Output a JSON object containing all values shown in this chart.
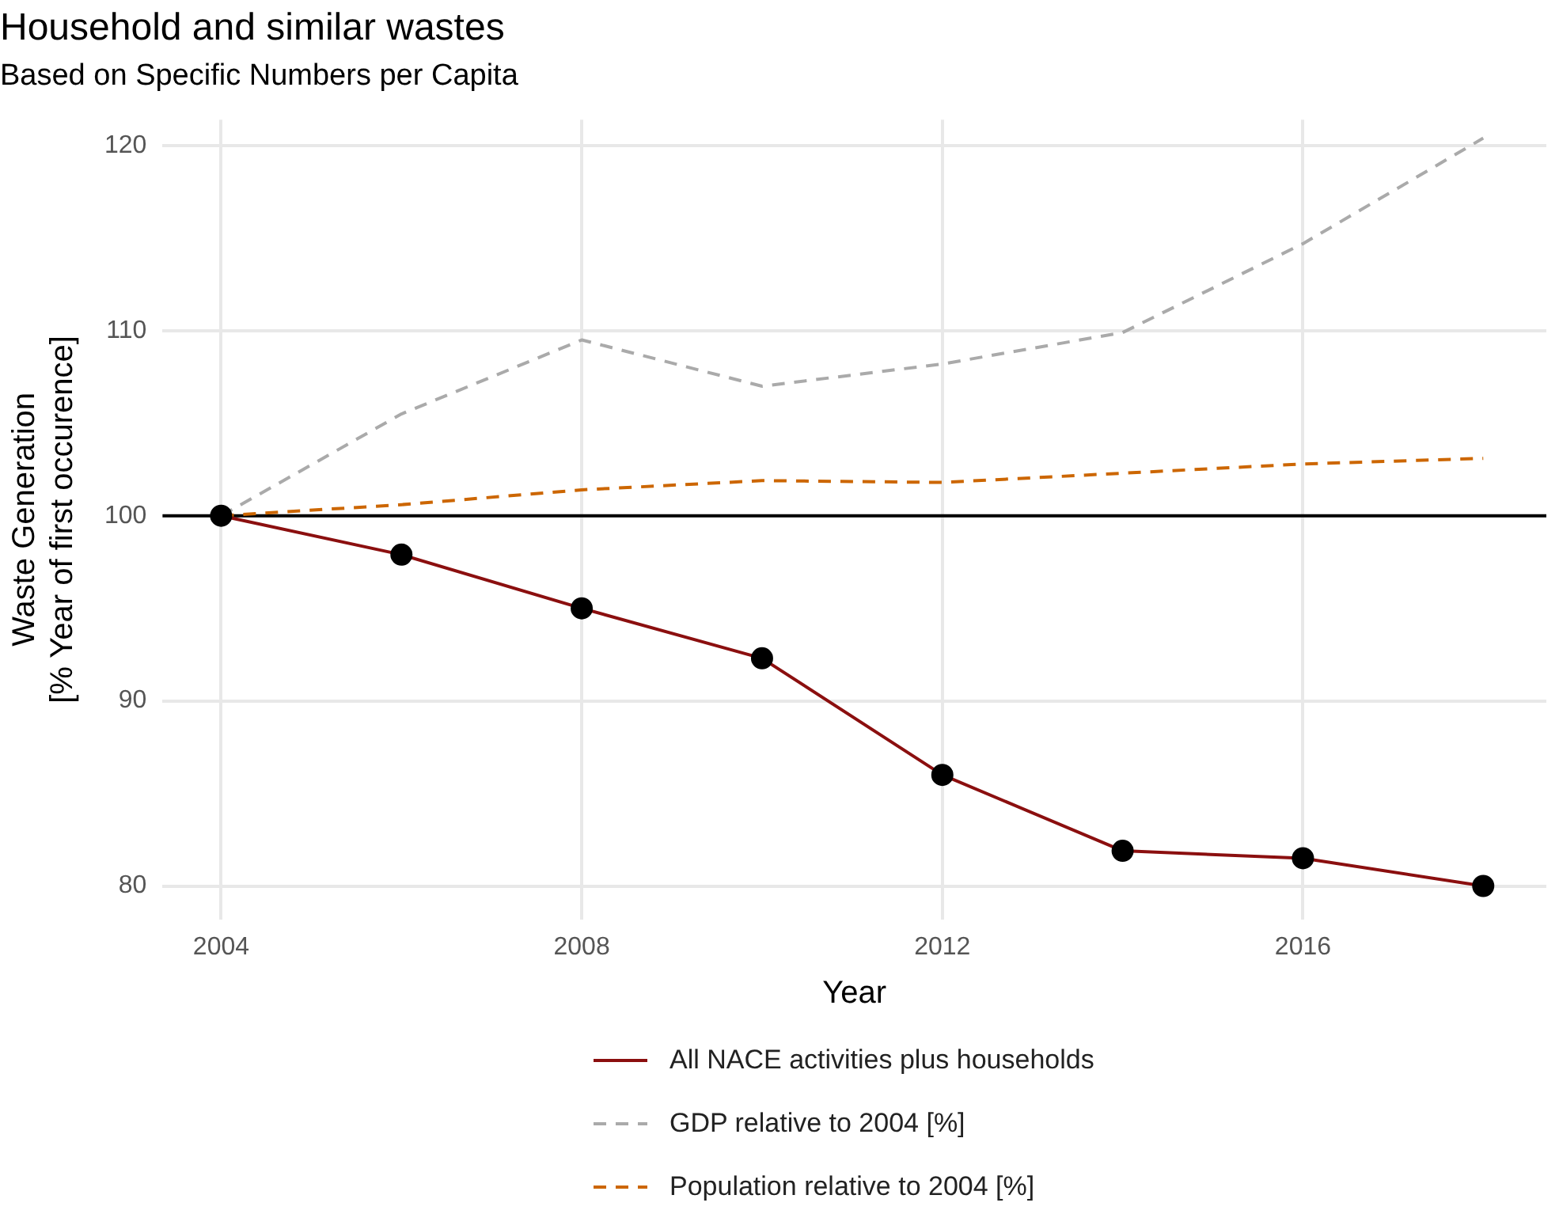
{
  "chart_data": {
    "type": "line",
    "title": "Household and similar wastes",
    "subtitle": "Based on Specific Numbers per Capita",
    "xlabel": "Year",
    "ylabel": "Waste Generation\n[% Year of first occurence]",
    "x": [
      2004,
      2006,
      2008,
      2010,
      2012,
      2014,
      2016,
      2018
    ],
    "series": [
      {
        "name": "All NACE activities plus households",
        "color": "#8b0f0f",
        "values": [
          100,
          97.9,
          95.0,
          92.3,
          86.0,
          81.9,
          81.5,
          80.0
        ],
        "marker": "circle",
        "line_style": "solid"
      },
      {
        "name": "GDP relative to 2004 [%]",
        "color": "#aaaaaa",
        "values": [
          100,
          105.5,
          109.5,
          107.0,
          108.2,
          109.9,
          114.7,
          120.4
        ],
        "marker": "none",
        "line_style": "dashed"
      },
      {
        "name": "Population relative to 2004 [%]",
        "color": "#cc6600",
        "values": [
          100,
          100.6,
          101.4,
          101.9,
          101.8,
          102.3,
          102.8,
          103.1
        ],
        "marker": "none",
        "line_style": "dashed"
      }
    ],
    "xlim": [
      2003.35,
      2018.7
    ],
    "ylim": [
      78.2,
      121.4
    ],
    "xticks": [
      2004,
      2008,
      2012,
      2016
    ],
    "yticks": [
      80,
      90,
      100,
      110,
      120
    ],
    "ref_lines": [
      {
        "axis": "y",
        "value": 100,
        "color": "#000000"
      }
    ],
    "grid": true,
    "legend": "bottom"
  }
}
